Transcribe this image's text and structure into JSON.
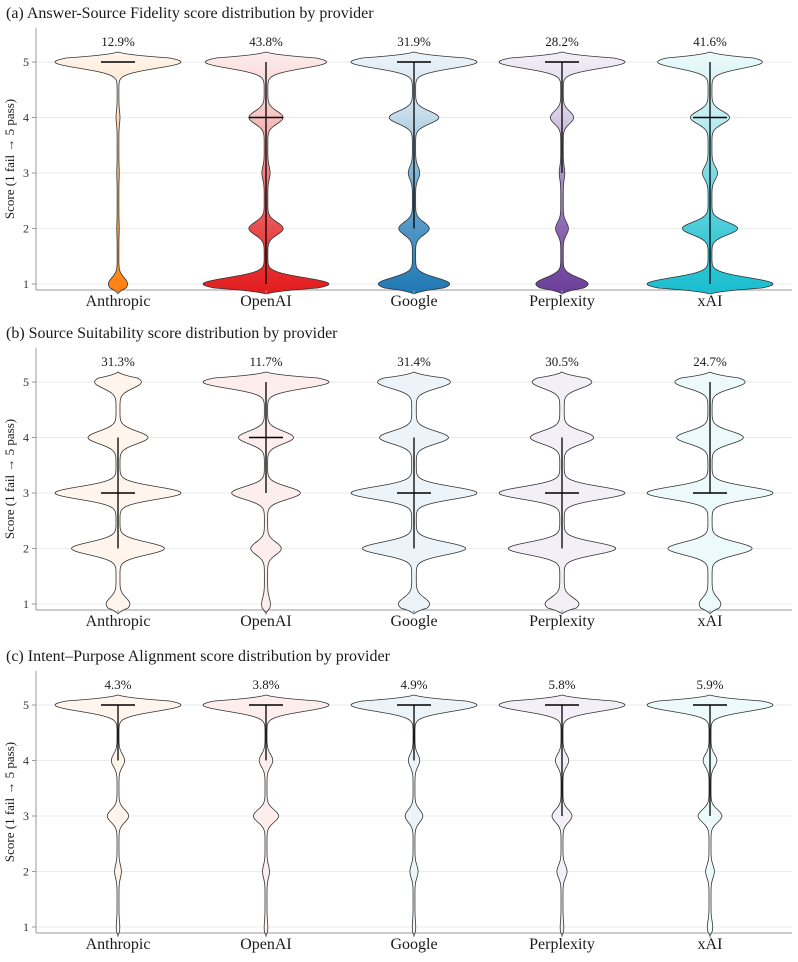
{
  "y_axis_label": "Score (1 fail → 5 pass)",
  "colors": {
    "providers": [
      "#ff7f0e",
      "#e31a1c",
      "#1f78b4",
      "#6a3d9a",
      "#17becf"
    ],
    "grid": "#ebebeb",
    "axis": "#9a9a9a",
    "outline": "#333333",
    "median": "#000000",
    "text": "#1a1a1a"
  },
  "chart_data": [
    {
      "type": "violin",
      "title": "(a) Answer-Source Fidelity score distribution by provider",
      "xlabel": "",
      "ylabel": "Score (1 fail → 5 pass)",
      "ylim": [
        1,
        5
      ],
      "yticks": [
        1,
        2,
        3,
        4,
        5
      ],
      "grid": true,
      "categories": [
        "Anthropic",
        "OpenAI",
        "Google",
        "Perplexity",
        "xAI"
      ],
      "annotations": [
        "12.9%",
        "43.8%",
        "31.9%",
        "28.2%",
        "41.6%"
      ],
      "score_distribution": [
        [
          0.12,
          0.005,
          0.005,
          0.015,
          0.855
        ],
        [
          0.4,
          0.1,
          0.015,
          0.1,
          0.385
        ],
        [
          0.25,
          0.1,
          0.03,
          0.17,
          0.45
        ],
        [
          0.24,
          0.05,
          0.015,
          0.1,
          0.595
        ],
        [
          0.38,
          0.16,
          0.035,
          0.11,
          0.315
        ]
      ],
      "median": [
        5,
        4,
        5,
        5,
        4
      ],
      "whisker": [
        [
          5,
          5
        ],
        [
          1,
          5
        ],
        [
          2,
          5
        ],
        [
          3,
          5
        ],
        [
          1,
          5
        ]
      ]
    },
    {
      "type": "violin",
      "title": "(b) Source Suitability score distribution by provider",
      "xlabel": "",
      "ylabel": "Score (1 fail → 5 pass)",
      "ylim": [
        1,
        5
      ],
      "yticks": [
        1,
        2,
        3,
        4,
        5
      ],
      "grid": true,
      "categories": [
        "Anthropic",
        "OpenAI",
        "Google",
        "Perplexity",
        "xAI"
      ],
      "annotations": [
        "31.3%",
        "11.7%",
        "31.4%",
        "30.5%",
        "24.7%"
      ],
      "score_distribution": [
        [
          0.06,
          0.27,
          0.37,
          0.17,
          0.13
        ],
        [
          0.02,
          0.1,
          0.24,
          0.19,
          0.45
        ],
        [
          0.07,
          0.26,
          0.32,
          0.17,
          0.18
        ],
        [
          0.08,
          0.28,
          0.33,
          0.16,
          0.15
        ],
        [
          0.05,
          0.23,
          0.35,
          0.18,
          0.19
        ]
      ],
      "median": [
        3,
        4,
        3,
        3,
        3
      ],
      "whisker": [
        [
          2,
          4
        ],
        [
          3,
          5
        ],
        [
          2,
          4
        ],
        [
          2,
          4
        ],
        [
          3,
          5
        ]
      ]
    },
    {
      "type": "violin",
      "title": "(c) Intent–Purpose Alignment score distribution by provider",
      "xlabel": "",
      "ylabel": "Score (1 fail → 5 pass)",
      "ylim": [
        1,
        5
      ],
      "yticks": [
        1,
        2,
        3,
        4,
        5
      ],
      "grid": true,
      "categories": [
        "Anthropic",
        "OpenAI",
        "Google",
        "Perplexity",
        "xAI"
      ],
      "annotations": [
        "4.3%",
        "3.8%",
        "4.9%",
        "5.8%",
        "5.9%"
      ],
      "score_distribution": [
        [
          0.01,
          0.03,
          0.12,
          0.07,
          0.77
        ],
        [
          0.01,
          0.03,
          0.14,
          0.07,
          0.75
        ],
        [
          0.01,
          0.04,
          0.1,
          0.06,
          0.79
        ],
        [
          0.01,
          0.05,
          0.11,
          0.07,
          0.76
        ],
        [
          0.02,
          0.04,
          0.13,
          0.07,
          0.74
        ]
      ],
      "median": [
        5,
        5,
        5,
        5,
        5
      ],
      "whisker": [
        [
          4,
          5
        ],
        [
          4,
          5
        ],
        [
          4,
          5
        ],
        [
          3,
          5
        ],
        [
          3,
          5
        ]
      ]
    }
  ]
}
